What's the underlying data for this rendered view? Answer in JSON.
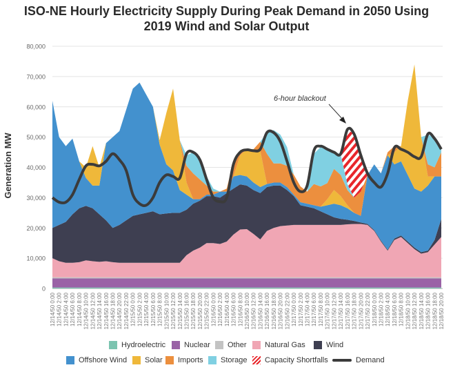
{
  "chart_data": {
    "type": "area",
    "stacked": true,
    "title_line1": "ISO-NE Hourly Electricity Supply During Peak Demand in 2050 Using",
    "title_line2": "2019 Wind and Solar Output",
    "ylabel": "Generation MW",
    "xlabel": "",
    "ylim": [
      0,
      80000
    ],
    "yticks": [
      "0",
      "10,000",
      "20,000",
      "30,000",
      "40,000",
      "50,000",
      "60,000",
      "70,000",
      "80,000"
    ],
    "grid": true,
    "legend_position": "bottom",
    "annotation": "6-hour blackout",
    "x": [
      "12/14/50 0:00",
      "12/14/50 2:00",
      "12/14/50 4:00",
      "12/14/50 6:00",
      "12/14/50 8:00",
      "12/14/50 10:00",
      "12/14/50 12:00",
      "12/14/50 14:00",
      "12/14/50 16:00",
      "12/14/50 18:00",
      "12/14/50 20:00",
      "12/14/50 22:00",
      "12/15/50 0:00",
      "12/15/50 2:00",
      "12/15/50 4:00",
      "12/15/50 6:00",
      "12/15/50 8:00",
      "12/15/50 10:00",
      "12/15/50 12:00",
      "12/15/50 14:00",
      "12/15/50 16:00",
      "12/15/50 18:00",
      "12/15/50 20:00",
      "12/15/50 22:00",
      "12/16/50 0:00",
      "12/16/50 2:00",
      "12/16/50 4:00",
      "12/16/50 6:00",
      "12/16/50 8:00",
      "12/16/50 10:00",
      "12/16/50 12:00",
      "12/16/50 14:00",
      "12/16/50 16:00",
      "12/16/50 18:00",
      "12/16/50 20:00",
      "12/16/50 22:00",
      "12/17/50 0:00",
      "12/17/50 2:00",
      "12/17/50 4:00",
      "12/17/50 6:00",
      "12/17/50 8:00",
      "12/17/50 10:00",
      "12/17/50 12:00",
      "12/17/50 14:00",
      "12/17/50 16:00",
      "12/17/50 18:00",
      "12/17/50 20:00",
      "12/17/50 22:00",
      "12/18/50 0:00",
      "12/18/50 2:00",
      "12/18/50 4:00",
      "12/18/50 6:00",
      "12/18/50 8:00",
      "12/18/50 10:00",
      "12/18/50 12:00",
      "12/18/50 14:00",
      "12/18/50 16:00",
      "12/18/50 18:00",
      "12/18/50 20:00"
    ],
    "series": [
      {
        "name": "Hydroelectric",
        "color": "#7cc4b0",
        "constant": 300
      },
      {
        "name": "Nuclear",
        "color": "#9a62a6",
        "constant": 3000
      },
      {
        "name": "Other",
        "color": "#c3c3c3",
        "constant": 400
      },
      {
        "name": "Natural Gas",
        "color": "#f0a6b4",
        "values": [
          6300,
          5300,
          4800,
          4800,
          5000,
          5600,
          5300,
          5100,
          5300,
          5000,
          4800,
          4800,
          4800,
          4800,
          4800,
          4800,
          4800,
          4800,
          4800,
          4800,
          7300,
          8800,
          9800,
          11300,
          11300,
          11000,
          11800,
          14100,
          15800,
          15900,
          14300,
          12500,
          15300,
          16300,
          16900,
          17100,
          17300,
          17300,
          17300,
          17300,
          17300,
          17300,
          17300,
          17300,
          17500,
          17600,
          17600,
          17300,
          15300,
          11800,
          8800,
          12300,
          13300,
          11300,
          9300,
          7800,
          8300,
          10800,
          13300
        ]
      },
      {
        "name": "Wind",
        "color": "#3e3f51",
        "values": [
          10000,
          12000,
          13500,
          16000,
          17800,
          18000,
          17500,
          15700,
          13500,
          11300,
          12500,
          14000,
          15500,
          16000,
          16500,
          17000,
          16000,
          16300,
          16500,
          16500,
          15000,
          15500,
          15500,
          15500,
          15500,
          15300,
          16000,
          15200,
          14900,
          14400,
          14500,
          15300,
          14500,
          14000,
          13400,
          11700,
          9500,
          6500,
          6000,
          5500,
          4500,
          3500,
          2500,
          2000,
          1500,
          1000,
          500,
          300,
          300,
          300,
          300,
          500,
          500,
          500,
          500,
          500,
          500,
          1500,
          6000
        ]
      },
      {
        "name": "Offshore Wind",
        "color": "#4391ce",
        "values": [
          42000,
          29000,
          25000,
          25000,
          15500,
          9200,
          7500,
          9500,
          25500,
          30000,
          31000,
          36500,
          42000,
          43500,
          39000,
          34500,
          23000,
          16200,
          14000,
          7500,
          5000,
          1500,
          500,
          500,
          500,
          2000,
          500,
          4000,
          3100,
          3000,
          2500,
          2000,
          1000,
          1000,
          1000,
          1000,
          500,
          1000,
          1000,
          1000,
          1500,
          3000,
          4500,
          4500,
          3800,
          2700,
          2200,
          16200,
          21700,
          22200,
          31200,
          24500,
          24500,
          22000,
          19500,
          20000,
          21500,
          21000,
          14000
        ]
      },
      {
        "name": "Solar",
        "color": "#efb83a",
        "values": [
          0,
          0,
          0,
          0,
          0,
          3500,
          13000,
          6000,
          0,
          0,
          0,
          0,
          0,
          0,
          0,
          0,
          1500,
          17000,
          27000,
          16500,
          4000,
          0,
          0,
          0,
          0,
          0,
          0,
          0,
          6500,
          9000,
          11000,
          12000,
          0,
          0,
          0,
          0,
          0,
          0,
          0,
          0,
          0,
          2000,
          4500,
          3000,
          1000,
          0,
          0,
          0,
          0,
          0,
          0,
          4000,
          5000,
          24500,
          41000,
          18000,
          3000,
          0,
          0
        ]
      },
      {
        "name": "Imports",
        "color": "#ec8f3e",
        "values": [
          0,
          0,
          0,
          0,
          0,
          0,
          0,
          0,
          0,
          0,
          0,
          0,
          0,
          0,
          0,
          0,
          0,
          0,
          0,
          0,
          5500,
          8500,
          6500,
          3000,
          1000,
          0,
          1000,
          5000,
          1500,
          0,
          0,
          3000,
          10000,
          6300,
          6300,
          7000,
          6600,
          5200,
          4000,
          7000,
          6700,
          5300,
          7000,
          7000,
          5000,
          5000,
          8000,
          0,
          0,
          0,
          1000,
          2000,
          0,
          0,
          0,
          0,
          4000,
          3000,
          8000
        ]
      },
      {
        "name": "Storage",
        "color": "#80d0e2",
        "values": [
          0,
          0,
          0,
          0,
          0,
          0,
          0,
          0,
          0,
          0,
          0,
          0,
          0,
          0,
          0,
          0,
          0,
          0,
          0,
          0,
          3500,
          7000,
          7000,
          3000,
          1000,
          0,
          0,
          0,
          0,
          0,
          0,
          0,
          7000,
          11000,
          9500,
          6200,
          0,
          0,
          0,
          10000,
          13000,
          11000,
          5600,
          6800,
          2000,
          0,
          0,
          0,
          0,
          0,
          0,
          0,
          0,
          0,
          0,
          0,
          9800,
          10000,
          1000
        ]
      },
      {
        "name": "Capacity Shortfalls",
        "color": "#e8262b",
        "pattern": "hatch",
        "values": [
          0,
          0,
          0,
          0,
          0,
          0,
          0,
          0,
          0,
          0,
          0,
          0,
          0,
          0,
          0,
          0,
          0,
          0,
          0,
          0,
          0,
          0,
          0,
          0,
          0,
          0,
          0,
          0,
          0,
          0,
          0,
          0,
          0,
          0,
          0,
          0,
          0,
          0,
          0,
          0,
          0,
          0,
          0,
          0,
          18000,
          21000,
          12000,
          0,
          0,
          0,
          0,
          0,
          0,
          0,
          0,
          0,
          0,
          0,
          0
        ]
      }
    ],
    "demand": {
      "name": "Demand",
      "color": "#3b3b3b",
      "values": [
        30000,
        28500,
        28500,
        31000,
        36000,
        40500,
        41000,
        40500,
        42000,
        44500,
        42500,
        39000,
        31000,
        28000,
        27500,
        30000,
        35000,
        37500,
        37000,
        36500,
        44500,
        45000,
        42500,
        36000,
        30000,
        28700,
        30000,
        41000,
        45000,
        45800,
        45500,
        46000,
        51500,
        51500,
        48500,
        42000,
        35000,
        32000,
        34000,
        45500,
        47000,
        46000,
        45000,
        44500,
        52500,
        51000,
        44000,
        38000,
        35000,
        33500,
        38000,
        46500,
        46000,
        45000,
        43500,
        43500,
        51000,
        49500,
        46000
      ]
    }
  }
}
